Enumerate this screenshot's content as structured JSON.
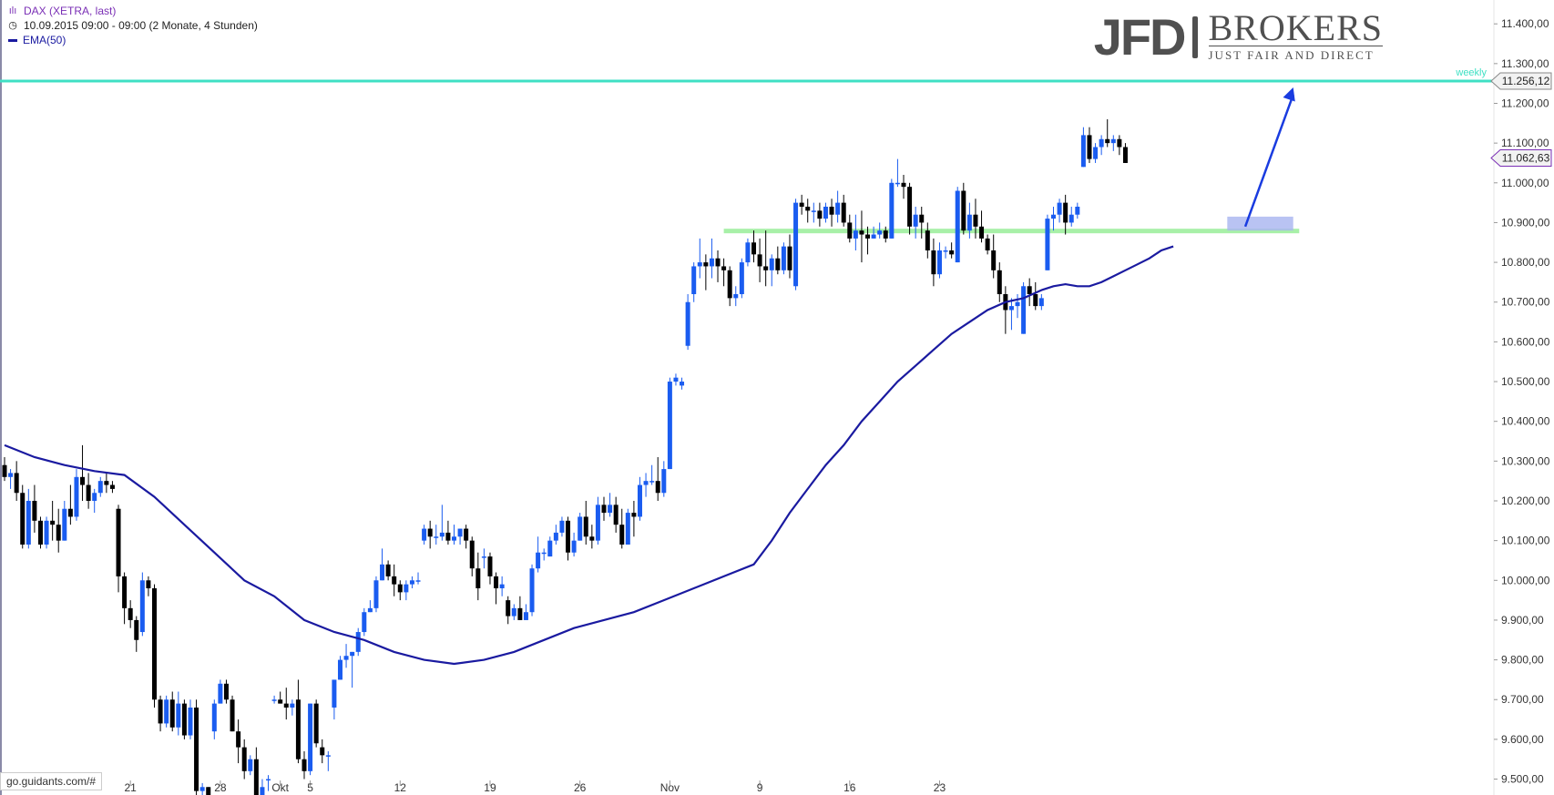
{
  "header": {
    "title": "DAX (XETRA, last)",
    "period": "10.09.2015 09:00 - 09:00 (2 Monate, 4 Stunden)",
    "ema_label": "EMA(50)"
  },
  "logo": {
    "brand": "JFD",
    "brand2": "BROKERS",
    "tagline": "JUST FAIR AND DIRECT"
  },
  "footer": {
    "source": "go.guidants.com/#"
  },
  "colors": {
    "up": "#1a5cf0",
    "down": "#000000",
    "ema": "#1a1aa0",
    "weekly": "#3fe0c4",
    "support": "#a8f0a8",
    "zone": "#a8b4f0",
    "arrow": "#1a3ce0"
  },
  "chart_data": {
    "type": "candlestick",
    "ylim": [
      9460,
      11460
    ],
    "y_ticks": [
      "9.500,00",
      "9.600,00",
      "9.700,00",
      "9.800,00",
      "9.900,00",
      "10.000,00",
      "10.100,00",
      "10.200,00",
      "10.300,00",
      "10.400,00",
      "10.500,00",
      "10.600,00",
      "10.700,00",
      "10.800,00",
      "10.900,00",
      "11.000,00",
      "11.100,00",
      "11.200,00",
      "11.300,00",
      "11.400,00"
    ],
    "x_labels": [
      {
        "label": "21",
        "i": 21
      },
      {
        "label": "28",
        "i": 36
      },
      {
        "label": "Okt",
        "i": 46
      },
      {
        "label": "5",
        "i": 51
      },
      {
        "label": "12",
        "i": 66
      },
      {
        "label": "19",
        "i": 81
      },
      {
        "label": "26",
        "i": 96
      },
      {
        "label": "Nov",
        "i": 111
      },
      {
        "label": "9",
        "i": 126
      },
      {
        "label": "16",
        "i": 141
      },
      {
        "label": "23",
        "i": 156
      }
    ],
    "candles": [
      [
        10290,
        10310,
        10250,
        10260
      ],
      [
        10260,
        10280,
        10230,
        10270
      ],
      [
        10270,
        10300,
        10200,
        10220
      ],
      [
        10220,
        10240,
        10080,
        10090
      ],
      [
        10090,
        10230,
        10080,
        10200
      ],
      [
        10200,
        10240,
        10120,
        10150
      ],
      [
        10150,
        10160,
        10080,
        10090
      ],
      [
        10090,
        10160,
        10080,
        10150
      ],
      [
        10150,
        10200,
        10100,
        10140
      ],
      [
        10140,
        10180,
        10070,
        10100
      ],
      [
        10100,
        10200,
        10100,
        10180
      ],
      [
        10180,
        10240,
        10140,
        10160
      ],
      [
        10160,
        10280,
        10150,
        10260
      ],
      [
        10260,
        10340,
        10200,
        10240
      ],
      [
        10240,
        10270,
        10180,
        10200
      ],
      [
        10200,
        10230,
        10170,
        10220
      ],
      [
        10220,
        10260,
        10210,
        10250
      ],
      [
        10250,
        10270,
        10220,
        10240
      ],
      [
        10240,
        10250,
        10220,
        10230
      ],
      [
        10180,
        10190,
        9970,
        10010
      ],
      [
        10010,
        10020,
        9890,
        9930
      ],
      [
        9930,
        9950,
        9880,
        9900
      ],
      [
        9900,
        9910,
        9820,
        9850
      ],
      [
        9870,
        10020,
        9860,
        10000
      ],
      [
        10000,
        10010,
        9960,
        9980
      ],
      [
        9980,
        9990,
        9680,
        9700
      ],
      [
        9700,
        9710,
        9620,
        9640
      ],
      [
        9640,
        9710,
        9630,
        9700
      ],
      [
        9700,
        9720,
        9620,
        9630
      ],
      [
        9630,
        9720,
        9610,
        9690
      ],
      [
        9690,
        9700,
        9600,
        9610
      ],
      [
        9610,
        9700,
        9600,
        9680
      ],
      [
        9680,
        9700,
        9450,
        9470
      ],
      [
        9470,
        9490,
        9430,
        9480
      ],
      [
        9480,
        9480,
        9430,
        9450
      ],
      [
        9620,
        9700,
        9600,
        9690
      ],
      [
        9690,
        9750,
        9690,
        9740
      ],
      [
        9740,
        9750,
        9690,
        9700
      ],
      [
        9700,
        9710,
        9620,
        9620
      ],
      [
        9620,
        9650,
        9540,
        9580
      ],
      [
        9580,
        9600,
        9500,
        9520
      ],
      [
        9520,
        9560,
        9510,
        9550
      ],
      [
        9550,
        9580,
        9450,
        9460
      ],
      [
        9460,
        9500,
        9450,
        9480
      ],
      [
        9500,
        9510,
        9470,
        9500
      ],
      [
        9700,
        9710,
        9690,
        9700
      ],
      [
        9700,
        9720,
        9690,
        9690
      ],
      [
        9690,
        9730,
        9650,
        9680
      ],
      [
        9680,
        9700,
        9660,
        9690
      ],
      [
        9700,
        9750,
        9540,
        9550
      ],
      [
        9550,
        9570,
        9500,
        9520
      ],
      [
        9520,
        9690,
        9510,
        9690
      ],
      [
        9690,
        9700,
        9580,
        9590
      ],
      [
        9580,
        9600,
        9540,
        9560
      ],
      [
        9560,
        9570,
        9520,
        9560
      ],
      [
        9680,
        9750,
        9650,
        9750
      ],
      [
        9750,
        9810,
        9750,
        9800
      ],
      [
        9800,
        9840,
        9780,
        9810
      ],
      [
        9810,
        9820,
        9730,
        9820
      ],
      [
        9820,
        9880,
        9810,
        9870
      ],
      [
        9870,
        9930,
        9860,
        9920
      ],
      [
        9920,
        9950,
        9920,
        9930
      ],
      [
        9930,
        10010,
        9920,
        10000
      ],
      [
        10000,
        10080,
        10000,
        10040
      ],
      [
        10040,
        10050,
        10000,
        10010
      ],
      [
        10010,
        10040,
        9960,
        9990
      ],
      [
        9990,
        10000,
        9950,
        9970
      ],
      [
        9970,
        10000,
        9950,
        9990
      ],
      [
        9990,
        10010,
        9980,
        10000
      ],
      [
        10000,
        10020,
        9990,
        10000
      ],
      [
        10100,
        10140,
        10090,
        10130
      ],
      [
        10130,
        10150,
        10080,
        10110
      ],
      [
        10110,
        10140,
        10090,
        10110
      ],
      [
        10110,
        10190,
        10100,
        10120
      ],
      [
        10120,
        10150,
        10090,
        10100
      ],
      [
        10100,
        10140,
        10090,
        10110
      ],
      [
        10110,
        10130,
        10090,
        10130
      ],
      [
        10130,
        10140,
        10080,
        10100
      ],
      [
        10100,
        10110,
        10010,
        10030
      ],
      [
        10030,
        10070,
        9950,
        9980
      ],
      [
        10060,
        10080,
        10030,
        10060
      ],
      [
        10060,
        10070,
        9990,
        10010
      ],
      [
        10010,
        10020,
        9940,
        9980
      ],
      [
        9980,
        10010,
        9960,
        9990
      ],
      [
        9950,
        9960,
        9890,
        9910
      ],
      [
        9910,
        9940,
        9900,
        9930
      ],
      [
        9930,
        9960,
        9900,
        9900
      ],
      [
        9900,
        9940,
        9900,
        9920
      ],
      [
        9920,
        10040,
        9910,
        10030
      ],
      [
        10030,
        10110,
        10020,
        10070
      ],
      [
        10070,
        10080,
        10050,
        10070
      ],
      [
        10060,
        10110,
        10060,
        10100
      ],
      [
        10100,
        10140,
        10090,
        10120
      ],
      [
        10120,
        10160,
        10110,
        10150
      ],
      [
        10150,
        10160,
        10050,
        10070
      ],
      [
        10070,
        10120,
        10060,
        10100
      ],
      [
        10100,
        10170,
        10100,
        10160
      ],
      [
        10160,
        10200,
        10090,
        10110
      ],
      [
        10110,
        10140,
        10080,
        10100
      ],
      [
        10100,
        10210,
        10090,
        10190
      ],
      [
        10190,
        10210,
        10150,
        10170
      ],
      [
        10170,
        10220,
        10160,
        10190
      ],
      [
        10190,
        10210,
        10120,
        10140
      ],
      [
        10140,
        10180,
        10080,
        10090
      ],
      [
        10090,
        10180,
        10090,
        10170
      ],
      [
        10170,
        10200,
        10110,
        10160
      ],
      [
        10160,
        10260,
        10150,
        10240
      ],
      [
        10240,
        10270,
        10210,
        10250
      ],
      [
        10250,
        10290,
        10240,
        10250
      ],
      [
        10250,
        10310,
        10200,
        10220
      ],
      [
        10220,
        10300,
        10210,
        10280
      ],
      [
        10280,
        10510,
        10280,
        10500
      ],
      [
        10500,
        10520,
        10490,
        10510
      ],
      [
        10490,
        10510,
        10480,
        10500
      ],
      [
        10590,
        10720,
        10580,
        10700
      ],
      [
        10720,
        10800,
        10700,
        10790
      ],
      [
        10790,
        10860,
        10760,
        10800
      ],
      [
        10800,
        10820,
        10730,
        10790
      ],
      [
        10790,
        10860,
        10760,
        10810
      ],
      [
        10810,
        10830,
        10750,
        10790
      ],
      [
        10790,
        10810,
        10740,
        10780
      ],
      [
        10780,
        10790,
        10690,
        10710
      ],
      [
        10710,
        10740,
        10690,
        10720
      ],
      [
        10720,
        10810,
        10710,
        10800
      ],
      [
        10800,
        10860,
        10790,
        10850
      ],
      [
        10850,
        10880,
        10800,
        10820
      ],
      [
        10820,
        10860,
        10750,
        10790
      ],
      [
        10790,
        10880,
        10740,
        10780
      ],
      [
        10780,
        10820,
        10740,
        10810
      ],
      [
        10810,
        10840,
        10770,
        10780
      ],
      [
        10780,
        10850,
        10770,
        10840
      ],
      [
        10840,
        10870,
        10760,
        10780
      ],
      [
        10740,
        10960,
        10730,
        10950
      ],
      [
        10950,
        10970,
        10920,
        10940
      ],
      [
        10940,
        10960,
        10900,
        10930
      ],
      [
        10930,
        10950,
        10900,
        10930
      ],
      [
        10930,
        10950,
        10890,
        10910
      ],
      [
        10910,
        10950,
        10900,
        10940
      ],
      [
        10940,
        10960,
        10890,
        10920
      ],
      [
        10920,
        10980,
        10900,
        10950
      ],
      [
        10950,
        10970,
        10890,
        10900
      ],
      [
        10900,
        10920,
        10850,
        10860
      ],
      [
        10860,
        10920,
        10830,
        10880
      ],
      [
        10880,
        10930,
        10800,
        10870
      ],
      [
        10870,
        10890,
        10820,
        10860
      ],
      [
        10860,
        10890,
        10860,
        10870
      ],
      [
        10870,
        10900,
        10860,
        10880
      ],
      [
        10880,
        10890,
        10850,
        10860
      ],
      [
        10860,
        11010,
        10860,
        11000
      ],
      [
        11000,
        11060,
        10990,
        11000
      ],
      [
        11000,
        11020,
        10960,
        10990
      ],
      [
        10990,
        11000,
        10870,
        10890
      ],
      [
        10890,
        10940,
        10860,
        10920
      ],
      [
        10920,
        10940,
        10860,
        10900
      ],
      [
        10880,
        10900,
        10810,
        10830
      ],
      [
        10830,
        10860,
        10740,
        10770
      ],
      [
        10770,
        10850,
        10760,
        10830
      ],
      [
        10830,
        10840,
        10810,
        10830
      ],
      [
        10830,
        10850,
        10810,
        10820
      ],
      [
        10800,
        10990,
        10800,
        10980
      ],
      [
        10980,
        11000,
        10870,
        10880
      ],
      [
        10880,
        10950,
        10860,
        10920
      ],
      [
        10920,
        10960,
        10860,
        10890
      ],
      [
        10890,
        10930,
        10850,
        10860
      ],
      [
        10860,
        10870,
        10820,
        10830
      ],
      [
        10830,
        10870,
        10760,
        10780
      ],
      [
        10780,
        10800,
        10700,
        10720
      ],
      [
        10720,
        10740,
        10620,
        10680
      ],
      [
        10680,
        10710,
        10630,
        10690
      ],
      [
        10690,
        10720,
        10660,
        10700
      ],
      [
        10620,
        10750,
        10620,
        10740
      ],
      [
        10740,
        10760,
        10690,
        10720
      ],
      [
        10720,
        10750,
        10680,
        10690
      ],
      [
        10690,
        10720,
        10680,
        10710
      ],
      [
        10780,
        10920,
        10780,
        10910
      ],
      [
        10910,
        10940,
        10880,
        10920
      ],
      [
        10920,
        10960,
        10900,
        10950
      ],
      [
        10950,
        10970,
        10870,
        10900
      ],
      [
        10900,
        10940,
        10890,
        10920
      ],
      [
        10920,
        10950,
        10910,
        10940
      ],
      [
        11040,
        11140,
        11040,
        11120
      ],
      [
        11120,
        11140,
        11050,
        11060
      ],
      [
        11060,
        11100,
        11050,
        11090
      ],
      [
        11090,
        11120,
        11070,
        11110
      ],
      [
        11110,
        11160,
        11090,
        11100
      ],
      [
        11100,
        11120,
        11080,
        11110
      ],
      [
        11110,
        11120,
        11070,
        11090
      ],
      [
        11090,
        11100,
        11050,
        11050
      ]
    ],
    "ema": [
      [
        0,
        10340
      ],
      [
        5,
        10310
      ],
      [
        10,
        10290
      ],
      [
        15,
        10275
      ],
      [
        20,
        10265
      ],
      [
        25,
        10210
      ],
      [
        30,
        10140
      ],
      [
        35,
        10070
      ],
      [
        40,
        10000
      ],
      [
        45,
        9960
      ],
      [
        50,
        9900
      ],
      [
        55,
        9870
      ],
      [
        60,
        9850
      ],
      [
        65,
        9820
      ],
      [
        70,
        9800
      ],
      [
        75,
        9790
      ],
      [
        80,
        9800
      ],
      [
        85,
        9820
      ],
      [
        90,
        9850
      ],
      [
        95,
        9880
      ],
      [
        100,
        9900
      ],
      [
        105,
        9920
      ],
      [
        110,
        9950
      ],
      [
        115,
        9980
      ],
      [
        120,
        10010
      ],
      [
        125,
        10040
      ],
      [
        128,
        10100
      ],
      [
        131,
        10170
      ],
      [
        134,
        10230
      ],
      [
        137,
        10290
      ],
      [
        140,
        10340
      ],
      [
        143,
        10400
      ],
      [
        146,
        10450
      ],
      [
        149,
        10500
      ],
      [
        152,
        10540
      ],
      [
        155,
        10580
      ],
      [
        158,
        10620
      ],
      [
        161,
        10650
      ],
      [
        164,
        10680
      ],
      [
        167,
        10700
      ],
      [
        170,
        10710
      ],
      [
        173,
        10730
      ],
      [
        175,
        10740
      ],
      [
        177,
        10745
      ],
      [
        179,
        10740
      ],
      [
        181,
        10740
      ],
      [
        183,
        10750
      ],
      [
        185,
        10765
      ],
      [
        187,
        10780
      ],
      [
        189,
        10795
      ],
      [
        191,
        10810
      ],
      [
        193,
        10830
      ],
      [
        195,
        10840
      ]
    ],
    "weekly_level": 11256.12,
    "weekly_label": "weekly",
    "weekly_price_label": "11.256,12",
    "last_price": 11062.63,
    "last_price_label": "11.062,63",
    "support_level": 10880,
    "support_range": [
      120,
      216
    ],
    "zone": {
      "from_i": 204,
      "to_i": 215,
      "low": 10880,
      "high": 10915
    },
    "arrow": {
      "from_i": 207,
      "from_y": 10890,
      "to_i": 215,
      "to_y": 11240
    }
  }
}
